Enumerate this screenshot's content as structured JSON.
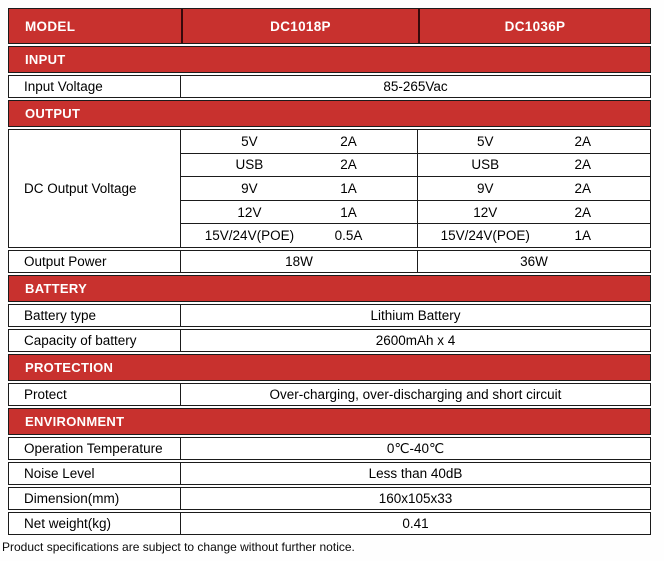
{
  "colors": {
    "header_red": "#c8312e",
    "header_divider": "#38090b",
    "border_black": "#1b1b1b"
  },
  "header": {
    "model_label": "MODEL",
    "models": [
      "DC1018P",
      "DC1036P"
    ]
  },
  "input": {
    "title": "INPUT",
    "rows": [
      {
        "label": "Input Voltage",
        "value": "85-265Vac"
      }
    ]
  },
  "output": {
    "title": "OUTPUT",
    "dc_label": "DC Output Voltage",
    "dc1018p": [
      [
        "5V",
        "2A"
      ],
      [
        "USB",
        "2A"
      ],
      [
        "9V",
        "1A"
      ],
      [
        "12V",
        "1A"
      ],
      [
        "15V/24V(POE)",
        "0.5A"
      ]
    ],
    "dc1036p": [
      [
        "5V",
        "2A"
      ],
      [
        "USB",
        "2A"
      ],
      [
        "9V",
        "2A"
      ],
      [
        "12V",
        "2A"
      ],
      [
        "15V/24V(POE)",
        "1A"
      ]
    ],
    "power_label": "Output Power",
    "power": [
      "18W",
      "36W"
    ]
  },
  "battery": {
    "title": "BATTERY",
    "rows": [
      {
        "label": "Battery type",
        "value": "Lithium Battery"
      },
      {
        "label": "Capacity of battery",
        "value": "2600mAh x 4"
      }
    ]
  },
  "protection": {
    "title": "PROTECTION",
    "rows": [
      {
        "label": "Protect",
        "value": "Over-charging, over-discharging and short circuit"
      }
    ]
  },
  "environment": {
    "title": "ENVIRONMENT",
    "rows": [
      {
        "label": "Operation Temperature",
        "value": "0℃-40℃"
      },
      {
        "label": "Noise Level",
        "value": "Less than 40dB"
      },
      {
        "label": "Dimension(mm)",
        "value": "160x105x33"
      },
      {
        "label": "Net weight(kg)",
        "value": "0.41"
      }
    ]
  },
  "footer_note": "Product specifications are subject to change without further notice."
}
